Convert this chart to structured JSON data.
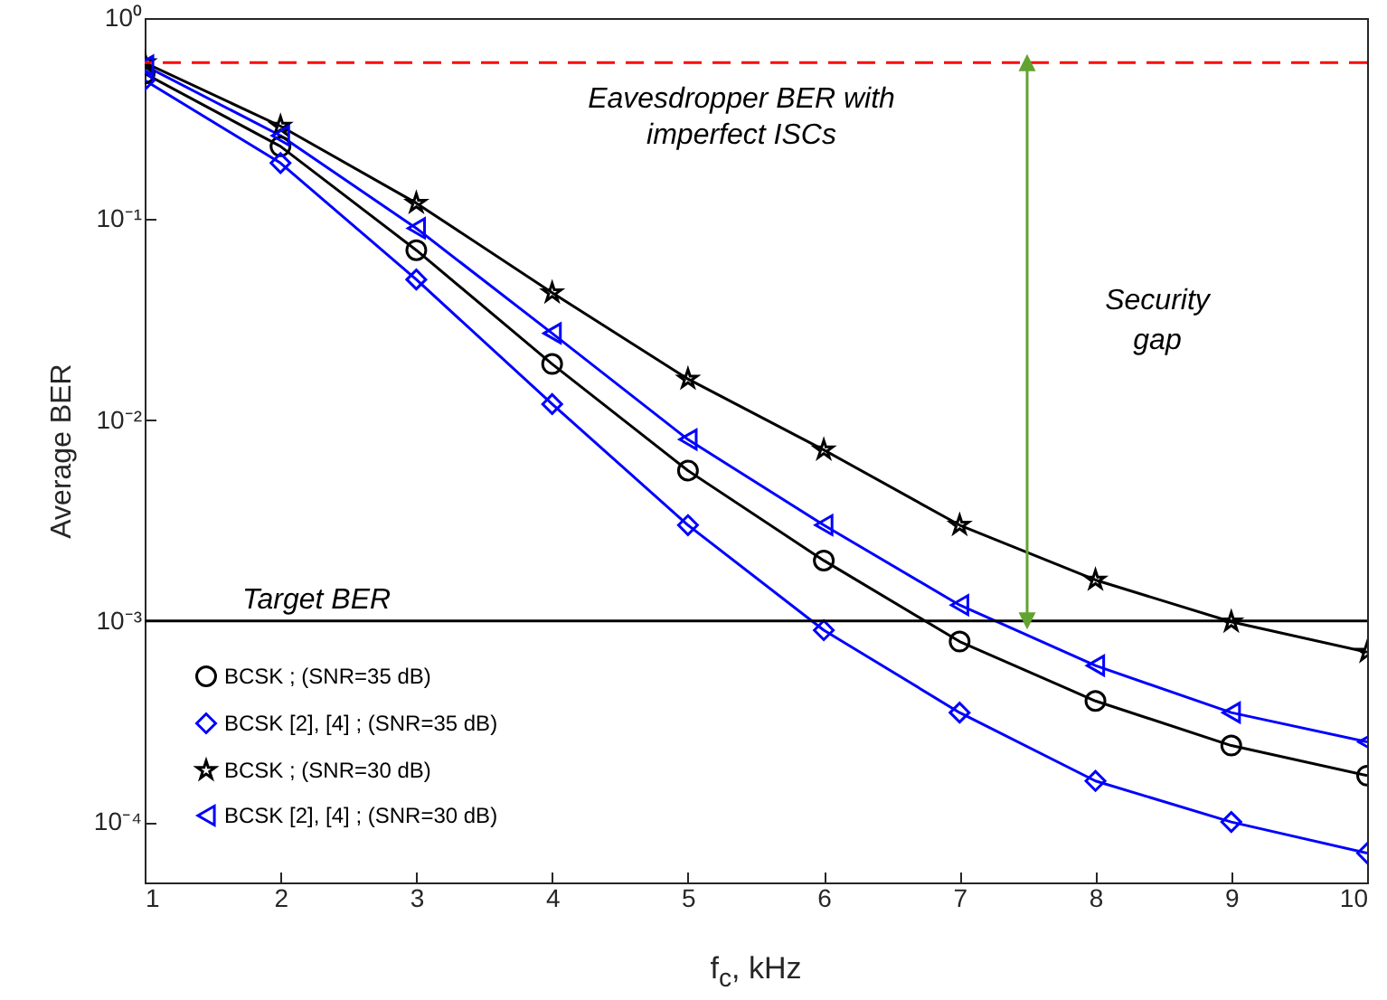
{
  "chart_data": {
    "type": "line",
    "xlabel": "f$_{c}$, kHz",
    "ylabel": "Average BER",
    "x": [
      1,
      2,
      3,
      4,
      5,
      6,
      7,
      8,
      9,
      10
    ],
    "series": [
      {
        "name": "BCSK ; (SNR=35 dB)",
        "color": "#000000",
        "marker": "circle",
        "values": [
          0.53,
          0.23,
          0.07,
          0.019,
          0.0056,
          0.002,
          0.00079,
          0.0004,
          0.00024,
          0.00017
        ]
      },
      {
        "name": "BCSK [2], [4] ; (SNR=35 dB)",
        "color": "#0000ff",
        "marker": "diamond",
        "values": [
          0.49,
          0.19,
          0.05,
          0.012,
          0.003,
          0.0009,
          0.00035,
          0.00016,
          0.0001,
          7e-05
        ]
      },
      {
        "name": "BCSK ; (SNR=30 dB)",
        "color": "#000000",
        "marker": "star",
        "values": [
          0.6,
          0.29,
          0.12,
          0.043,
          0.016,
          0.0071,
          0.003,
          0.0016,
          0.00099,
          0.0007
        ]
      },
      {
        "name": "BCSK [2], [4] ; (SNR=30 dB)",
        "color": "#0000ff",
        "marker": "triangle",
        "values": [
          0.58,
          0.26,
          0.09,
          0.027,
          0.008,
          0.003,
          0.0012,
          0.0006,
          0.00035,
          0.00025
        ]
      }
    ],
    "ref_lines": [
      {
        "axis": "y",
        "value": 0.6,
        "label": "Eavesdropper BER with\nimperfect ISCs",
        "color": "#ff0000",
        "line_style": "dashed"
      },
      {
        "axis": "y",
        "value": 0.001,
        "label": "Target BER",
        "color": "#000000",
        "line_style": "solid"
      }
    ],
    "annotations": [
      "Security\ngap"
    ],
    "log": "y",
    "xlim": [
      1,
      10
    ],
    "xticks": [
      1,
      2,
      3,
      4,
      5,
      6,
      7,
      8,
      9,
      10
    ],
    "ylim": [
      5e-05,
      1
    ],
    "yticks": [
      {
        "value": 0.0001,
        "label": "10⁻⁴"
      },
      {
        "value": 0.001,
        "label": "10⁻³"
      },
      {
        "value": 0.01,
        "label": "10⁻²"
      },
      {
        "value": 0.1,
        "label": "10⁻¹"
      },
      {
        "value": 1,
        "label": "10⁰"
      }
    ],
    "grid": false,
    "legend": "bottom left"
  }
}
